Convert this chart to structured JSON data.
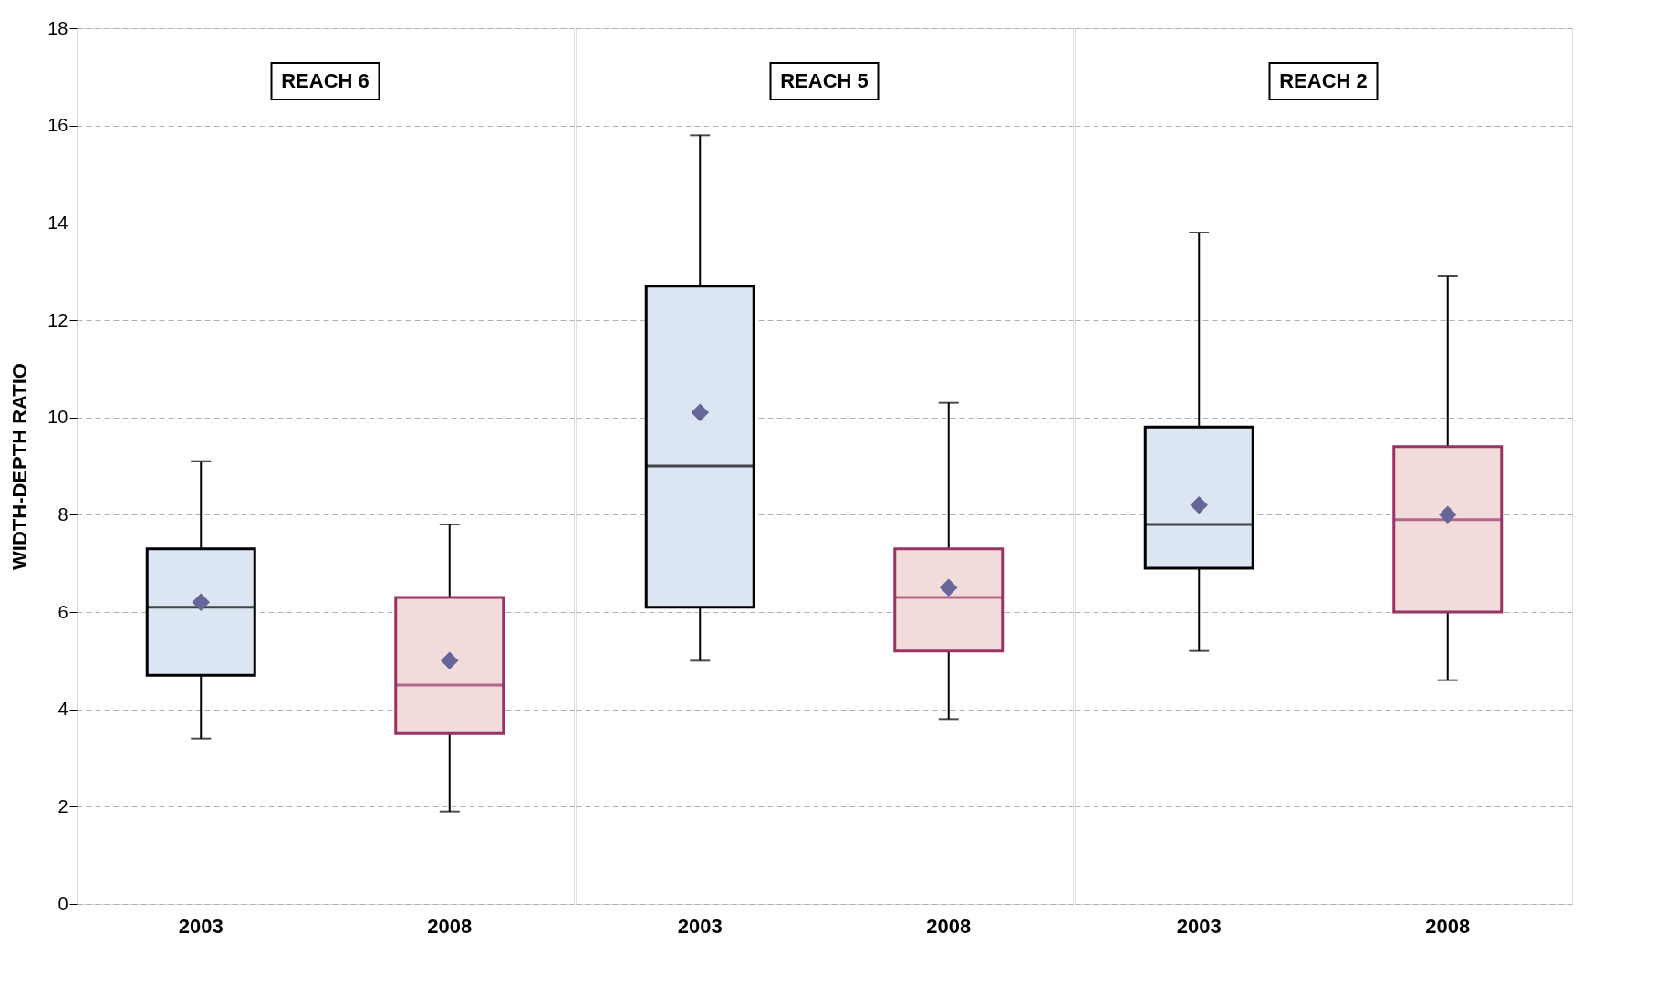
{
  "chart_data": [
    {
      "type": "box",
      "title": "REACH 6",
      "ylabel": "WIDTH-DEPTH RATIO",
      "categories": [
        "2003",
        "2008"
      ],
      "colors": [
        "#dce6f2",
        "#f2dcdb"
      ],
      "ylim": [
        0,
        18
      ],
      "yticks": [
        0,
        2,
        4,
        6,
        8,
        10,
        12,
        14,
        16,
        18
      ],
      "grid": "y",
      "boxes": [
        {
          "low": 3.4,
          "q1": 4.7,
          "median": 6.1,
          "q3": 7.3,
          "high": 9.1,
          "mean": 6.2
        },
        {
          "low": 1.9,
          "q1": 3.5,
          "median": 4.5,
          "q3": 6.3,
          "high": 7.8,
          "mean": 5.0
        }
      ]
    },
    {
      "type": "box",
      "title": "REACH 5",
      "categories": [
        "2003",
        "2008"
      ],
      "colors": [
        "#dce6f2",
        "#f2dcdb"
      ],
      "ylim": [
        0,
        18
      ],
      "yticks": [
        0,
        2,
        4,
        6,
        8,
        10,
        12,
        14,
        16,
        18
      ],
      "grid": "y",
      "tick_labels": "x",
      "boxes": [
        {
          "low": 5.0,
          "q1": 6.1,
          "median": 9.0,
          "q3": 12.7,
          "high": 15.8,
          "mean": 10.1
        },
        {
          "low": 3.8,
          "q1": 5.2,
          "median": 6.3,
          "q3": 7.3,
          "high": 10.3,
          "mean": 6.5
        }
      ]
    },
    {
      "type": "box",
      "title": "REACH 2",
      "categories": [
        "2003",
        "2008"
      ],
      "colors": [
        "#dce6f2",
        "#f2dcdb"
      ],
      "ylim": [
        0,
        18
      ],
      "yticks": [
        0,
        2,
        4,
        6,
        8,
        10,
        12,
        14,
        16,
        18
      ],
      "grid": "y",
      "tick_labels": "x",
      "boxes": [
        {
          "low": 5.2,
          "q1": 6.9,
          "median": 7.8,
          "q3": 9.8,
          "high": 13.8,
          "mean": 8.2
        },
        {
          "low": 4.6,
          "q1": 6.0,
          "median": 7.9,
          "q3": 9.4,
          "high": 12.9,
          "mean": 8.0
        }
      ]
    }
  ]
}
